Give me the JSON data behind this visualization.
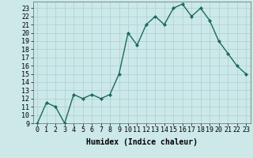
{
  "x": [
    0,
    1,
    2,
    3,
    4,
    5,
    6,
    7,
    8,
    9,
    10,
    11,
    12,
    13,
    14,
    15,
    16,
    17,
    18,
    19,
    20,
    21,
    22,
    23
  ],
  "y": [
    9,
    11.5,
    11,
    9,
    12.5,
    12,
    12.5,
    12,
    12.5,
    15,
    20,
    18.5,
    21,
    22,
    21,
    23,
    23.5,
    22,
    23,
    21.5,
    19,
    17.5,
    16,
    15
  ],
  "line_color": "#1a6b5a",
  "marker": "D",
  "marker_size": 2.0,
  "background_color": "#cce8e8",
  "grid_color": "#aad0d0",
  "xlabel": "Humidex (Indice chaleur)",
  "xlabel_fontsize": 7,
  "ylim": [
    9,
    23.8
  ],
  "xlim": [
    -0.5,
    23.5
  ],
  "yticks": [
    9,
    10,
    11,
    12,
    13,
    14,
    15,
    16,
    17,
    18,
    19,
    20,
    21,
    22,
    23
  ],
  "xticks": [
    0,
    1,
    2,
    3,
    4,
    5,
    6,
    7,
    8,
    9,
    10,
    11,
    12,
    13,
    14,
    15,
    16,
    17,
    18,
    19,
    20,
    21,
    22,
    23
  ],
  "tick_fontsize": 6,
  "line_width": 1.0
}
